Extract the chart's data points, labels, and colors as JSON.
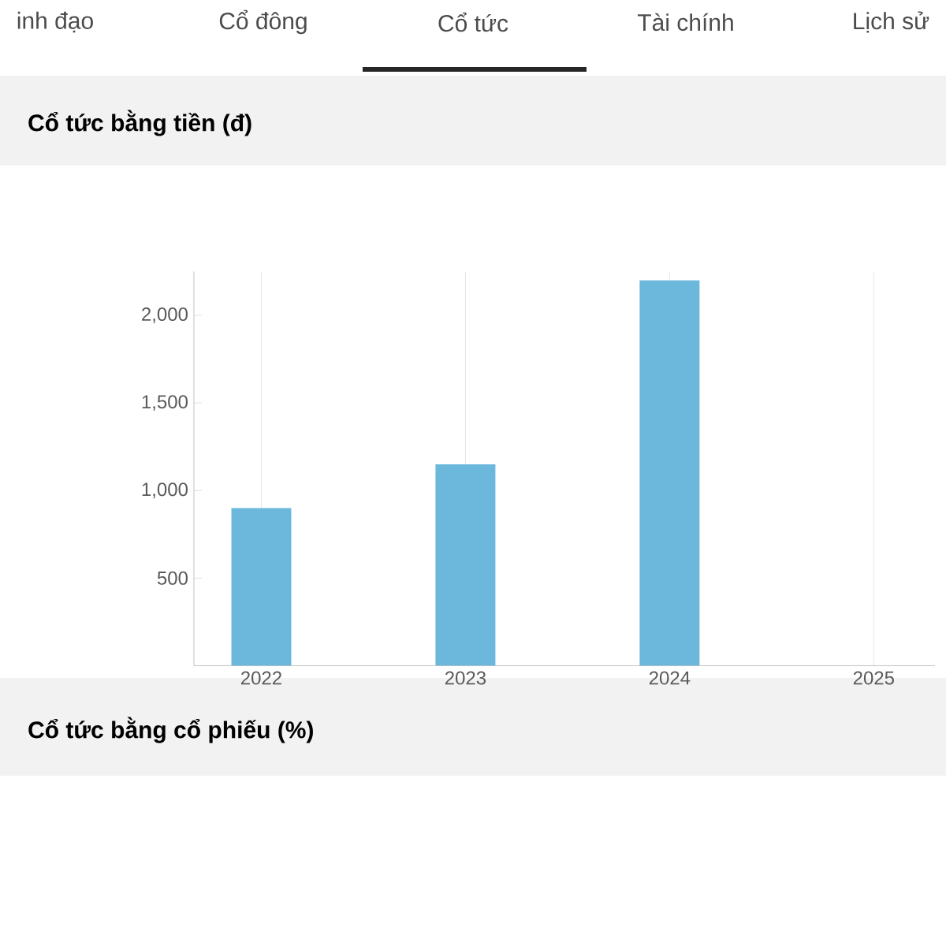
{
  "chart_data": {
    "type": "bar",
    "title": "Cổ tức bằng tiền (đ)",
    "categories": [
      "2022",
      "2023",
      "2024",
      "2025"
    ],
    "values": [
      900,
      1150,
      2200,
      null
    ],
    "color": "#6bb8dc",
    "ylim": [
      0,
      2250
    ],
    "yticks": [
      {
        "value": 500,
        "label": "500"
      },
      {
        "value": 1000,
        "label": "1,000"
      },
      {
        "value": 1500,
        "label": "1,500"
      },
      {
        "value": 2000,
        "label": "2,000"
      }
    ],
    "grid": "x",
    "annotations": [
      "inh đạo",
      "Cổ đông",
      "Cổ tức",
      "Tài chính",
      "Lịch sử",
      "Cổ tức bằng cổ phiếu (%)"
    ]
  }
}
